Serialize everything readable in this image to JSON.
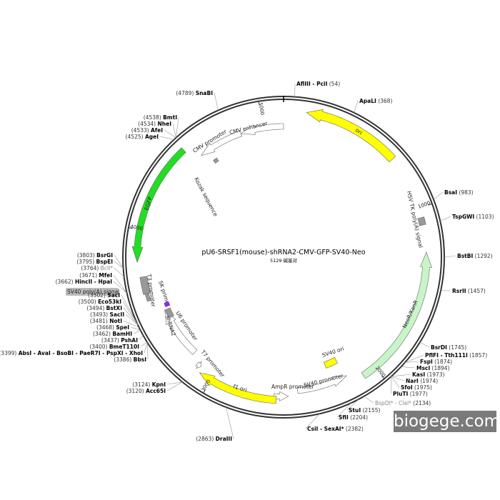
{
  "title": "pU6-SRSF1(mouse)-shRNA2-CMV-GFP-SV40-Neo",
  "subtitle": "5129 碱基对",
  "watermark": "biogege.com",
  "ticks": [
    "1000",
    "2000",
    "3000",
    "4000",
    "5000"
  ],
  "features": [
    {
      "name": "ori",
      "color": "#ffff00"
    },
    {
      "name": "HSV TK poly(A) signal",
      "color": "#999999"
    },
    {
      "name": "NeoR/KanR",
      "color": "#c8f5c8"
    },
    {
      "name": "SV40 ori",
      "color": "#ffff00"
    },
    {
      "name": "SV40 promoter",
      "color": "#ffffff"
    },
    {
      "name": "AmpR promoter",
      "color": "#ffffff"
    },
    {
      "name": "f1 ori",
      "color": "#ffff00"
    },
    {
      "name": "T7 promoter",
      "color": "#ffffff"
    },
    {
      "name": "U6 promoter",
      "color": "#ffffff"
    },
    {
      "name": "shRNA2",
      "color": "#999999"
    },
    {
      "name": "SK primer",
      "color": "#999999"
    },
    {
      "name": "T3 promoter",
      "color": "#999999"
    },
    {
      "name": "EGFP",
      "color": "#22dd22"
    },
    {
      "name": "CMV promoter",
      "color": "#ffffff"
    },
    {
      "name": "CMV enhancer",
      "color": "#ffffff"
    },
    {
      "name": "Kozak sequence",
      "color": "#999999"
    },
    {
      "name": "SV40 poly(A) signal",
      "color": "#bbbbbb"
    }
  ],
  "sites_right": [
    {
      "name": "AflIII - PciI",
      "pos": "(54)"
    },
    {
      "name": "ApaLI",
      "pos": "(368)"
    },
    {
      "name": "BsaI",
      "pos": "(983)"
    },
    {
      "name": "TspGWI",
      "pos": "(1103)"
    },
    {
      "name": "BstBI",
      "pos": "(1292)"
    },
    {
      "name": "RsrII",
      "pos": "(1457)"
    },
    {
      "name": "BsrDI",
      "pos": "(1745)"
    },
    {
      "name": "PflFI - Tth111I",
      "pos": "(1857)"
    },
    {
      "name": "FspI",
      "pos": "(1874)"
    },
    {
      "name": "MscI",
      "pos": "(1894)"
    },
    {
      "name": "KasI",
      "pos": "(1973)"
    },
    {
      "name": "NarI",
      "pos": "(1974)"
    },
    {
      "name": "SfoI",
      "pos": "(1975)"
    },
    {
      "name": "PluTI",
      "pos": "(1977)"
    },
    {
      "name": "BspDI* - ClaI*",
      "pos": "(2134)",
      "methyl": true
    },
    {
      "name": "StuI",
      "pos": "(2155)"
    },
    {
      "name": "SfiI",
      "pos": "(2204)"
    },
    {
      "name": "CsiI - SexAI*",
      "pos": "(2382)"
    }
  ],
  "sites_left": [
    {
      "name": "DraIII",
      "pos": "(2863)"
    },
    {
      "name": "KpnI",
      "pos": "(3124)"
    },
    {
      "name": "Acc65I",
      "pos": "(3120)"
    },
    {
      "name": "BbsI",
      "pos": "(3386)"
    },
    {
      "name": "AbsI - AvaI - BsoBI - PaeR7I - PspXI - XhoI",
      "pos": "(3399)"
    },
    {
      "name": "BmeT110I",
      "pos": "(3400)"
    },
    {
      "name": "PshAI",
      "pos": "(3437)"
    },
    {
      "name": "BamHI",
      "pos": "(3462)"
    },
    {
      "name": "SpeI",
      "pos": "(3468)"
    },
    {
      "name": "NotI",
      "pos": "(3481)"
    },
    {
      "name": "SacII",
      "pos": "(3493)"
    },
    {
      "name": "BstXI",
      "pos": "(3494)"
    },
    {
      "name": "Eco53kI",
      "pos": "(3500)"
    },
    {
      "name": "SacI",
      "pos": "(3502)"
    },
    {
      "name": "HincII - HpaI",
      "pos": "(3662)"
    },
    {
      "name": "MfeI",
      "pos": "(3671)"
    },
    {
      "name": "BclI*",
      "pos": "(3764)",
      "methyl": true
    },
    {
      "name": "BspEI",
      "pos": "(3795)"
    },
    {
      "name": "BsrGI",
      "pos": "(3803)"
    },
    {
      "name": "AgeI",
      "pos": "(4525)"
    },
    {
      "name": "AfeI",
      "pos": "(4533)"
    },
    {
      "name": "NheI",
      "pos": "(4534)"
    },
    {
      "name": "BmtI",
      "pos": "(4538)"
    },
    {
      "name": "SnaBI",
      "pos": "(4789)"
    }
  ]
}
